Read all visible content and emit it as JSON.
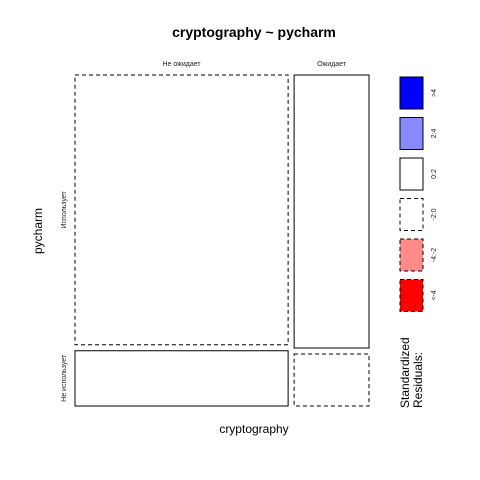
{
  "chart_data": {
    "type": "mosaic",
    "title": "cryptography ~ pycharm",
    "xlabel": "cryptography",
    "ylabel": "pycharm",
    "x_categories": [
      "Не ожидает",
      "Ожидает"
    ],
    "y_categories": [
      "Использует",
      "Не использует"
    ],
    "cells": [
      {
        "x": "Не ожидает",
        "y": "Использует",
        "share_of_column": 0.83,
        "residual_class": "-2:0"
      },
      {
        "x": "Не ожидает",
        "y": "Не использует",
        "share_of_column": 0.17,
        "residual_class": "0:2"
      },
      {
        "x": "Ожидает",
        "y": "Использует",
        "share_of_column": 0.84,
        "residual_class": "0:2"
      },
      {
        "x": "Ожидает",
        "y": "Не использует",
        "share_of_column": 0.16,
        "residual_class": "-2:0"
      }
    ],
    "column_shares": [
      0.74,
      0.26
    ],
    "legend": {
      "title_line1": "Standardized",
      "title_line2": "Residuals:",
      "placement": "right",
      "items": [
        {
          "label": ">4",
          "fill": "#0000ff",
          "dashed": false
        },
        {
          "label": "2:4",
          "fill": "#8a8aff",
          "dashed": false
        },
        {
          "label": "0:2",
          "fill": "#ffffff",
          "dashed": false
        },
        {
          "label": "-2:0",
          "fill": "#ffffff",
          "dashed": true
        },
        {
          "label": "-4:-2",
          "fill": "#ff8a8a",
          "dashed": true
        },
        {
          "label": "<-4",
          "fill": "#ff0000",
          "dashed": true
        }
      ]
    }
  }
}
